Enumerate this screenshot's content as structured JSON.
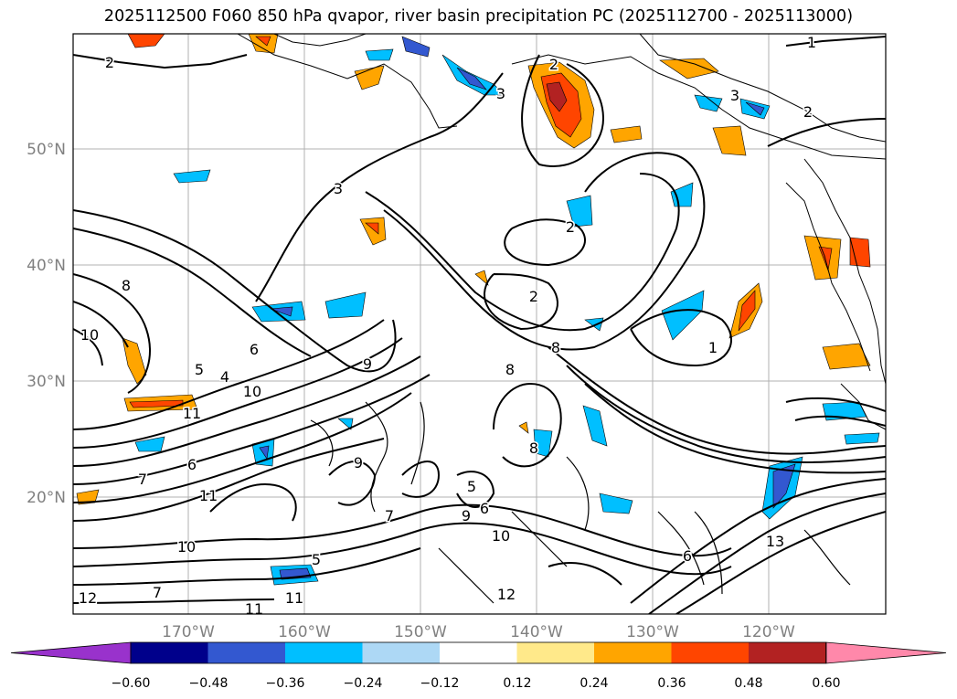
{
  "title": "2025112500 F060 850 hPa qvapor, river basin precipitation PC (2025112700 - 2025113000)",
  "map": {
    "lat_ticks": [
      "50°N",
      "40°N",
      "30°N",
      "20°N"
    ],
    "lon_ticks": [
      "170°W",
      "160°W",
      "150°W",
      "140°W",
      "130°W",
      "120°W"
    ],
    "contour_labels": [
      "2",
      "3",
      "1",
      "3",
      "2",
      "2",
      "3",
      "2",
      "2",
      "8",
      "10",
      "5",
      "6",
      "4",
      "10",
      "11",
      "9",
      "7",
      "6",
      "8",
      "9",
      "11",
      "10",
      "7",
      "8",
      "9",
      "6",
      "5",
      "10",
      "12",
      "11",
      "12",
      "13",
      "11",
      "6",
      "1",
      "5",
      "8",
      "7"
    ]
  },
  "colorbar": {
    "colors": [
      "#9932cc",
      "#00008b",
      "#3358d0",
      "#00bfff",
      "#add8f5",
      "#ffffff",
      "#ffe98a",
      "#ffa500",
      "#ff4500",
      "#b22222",
      "#ff88aa"
    ],
    "ticks": [
      "−0.60",
      "−0.48",
      "−0.36",
      "−0.24",
      "−0.12",
      "0.12",
      "0.24",
      "0.36",
      "0.48",
      "0.60"
    ]
  }
}
